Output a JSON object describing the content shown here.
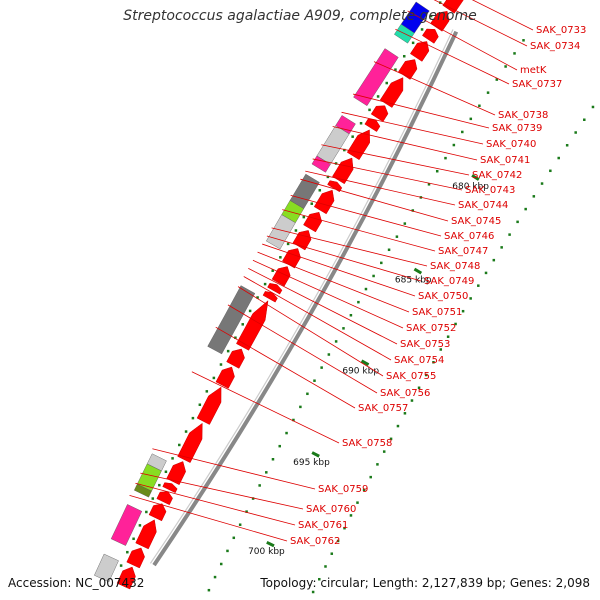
{
  "title": "Streptococcus agalactiae A909, complete genome",
  "footer": {
    "accession": "Accession: NC_007432",
    "summary": "Topology: circular; Length: 2,127,839 bp; Genes: 2,098"
  },
  "kbp_ticks": [
    {
      "label": "680 kbp",
      "kbp": 680
    },
    {
      "label": "685 kbp",
      "kbp": 685
    },
    {
      "label": "690 kbp",
      "kbp": 690
    },
    {
      "label": "695 kbp",
      "kbp": 695
    },
    {
      "label": "700 kbp",
      "kbp": 700
    }
  ],
  "gene_labels": [
    "SAK_0733",
    "SAK_0734",
    "metK",
    "SAK_0737",
    "SAK_0738",
    "SAK_0739",
    "SAK_0740",
    "SAK_0741",
    "SAK_0742",
    "SAK_0743",
    "SAK_0744",
    "SAK_0745",
    "SAK_0746",
    "SAK_0747",
    "SAK_0748",
    "SAK_0749",
    "SAK_0750",
    "SAK_0751",
    "SAK_0752",
    "SAK_0753",
    "SAK_0754",
    "SAK_0755",
    "SAK_0756",
    "SAK_0757",
    "SAK_0758",
    "SAK_0759",
    "SAK_0760",
    "SAK_0761",
    "SAK_0762"
  ],
  "colors": {
    "cds": "#ff0000",
    "backbone": "#888888",
    "label": "#dd0000",
    "tick": "#1a7a1a",
    "gray_gene": "#777777",
    "light_gray_gene": "#cccccc",
    "magenta_gene": "#ff2299",
    "blue_gene": "#0000ee",
    "green_gene": "#88dd22",
    "cyan_gene": "#22ddaa"
  }
}
